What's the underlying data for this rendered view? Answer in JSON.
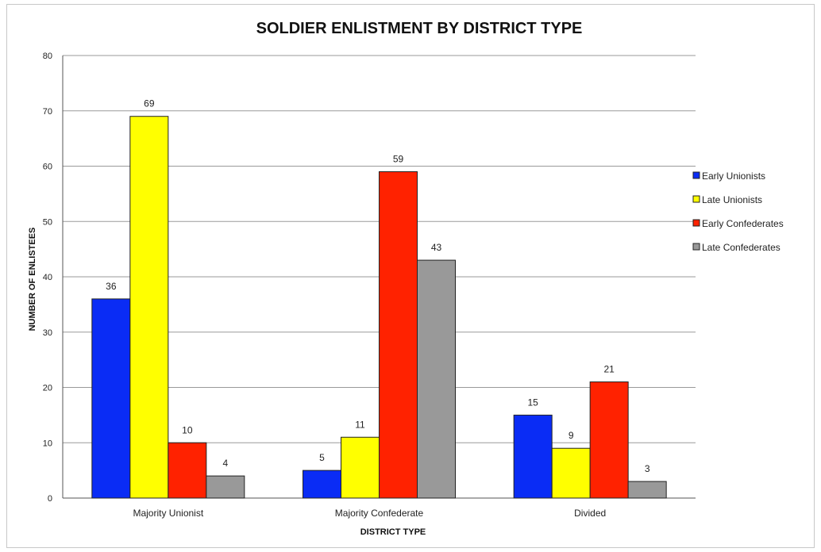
{
  "chart_data": {
    "type": "bar",
    "title": "SOLDIER ENLISTMENT BY DISTRICT TYPE",
    "xlabel": "DISTRICT TYPE",
    "ylabel": "NUMBER OF ENLISTEES",
    "ylim": [
      0,
      80
    ],
    "yticks": [
      0,
      10,
      20,
      30,
      40,
      50,
      60,
      70,
      80
    ],
    "grid": true,
    "legend_position": "right",
    "categories": [
      "Majority Unionist",
      "Majority Confederate",
      "Divided"
    ],
    "series": [
      {
        "name": "Early Unionists",
        "color": "#0a2cf5",
        "values": [
          36,
          5,
          15
        ]
      },
      {
        "name": "Late Unionists",
        "color": "#ffff00",
        "values": [
          69,
          11,
          9
        ]
      },
      {
        "name": "Early Confederates",
        "color": "#ff2200",
        "values": [
          10,
          59,
          21
        ]
      },
      {
        "name": "Late Confederates",
        "color": "#999999",
        "values": [
          4,
          43,
          3
        ]
      }
    ]
  }
}
